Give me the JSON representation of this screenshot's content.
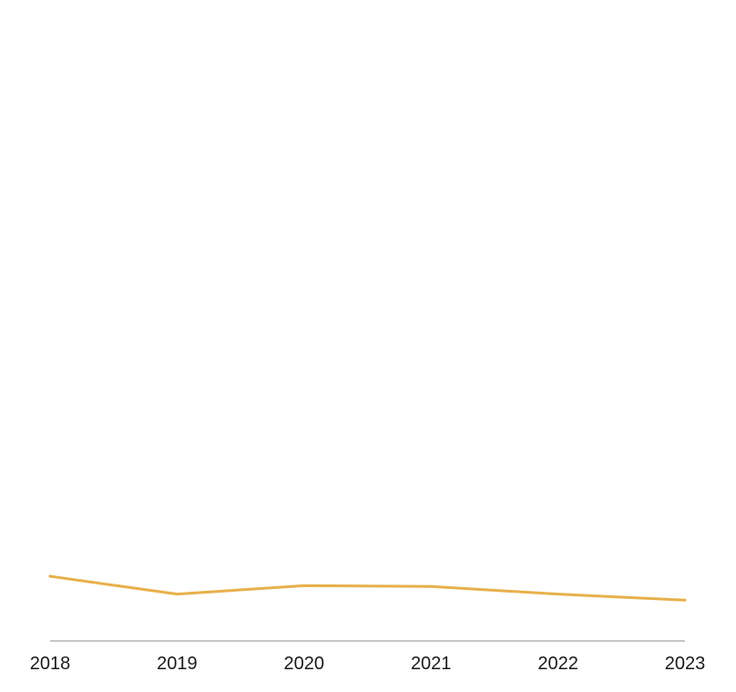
{
  "chart_data": {
    "type": "line",
    "title": "",
    "xlabel": "",
    "ylabel": "",
    "categories": [
      "2018",
      "2019",
      "2020",
      "2021",
      "2022",
      "2023"
    ],
    "series": [
      {
        "values": [
          76,
          55,
          65,
          64,
          55,
          48
        ]
      }
    ],
    "ylim": [
      0,
      750
    ],
    "grid": false,
    "legend": "none",
    "colors": {
      "line": "#E8B04B",
      "axis": "#8c8c8c",
      "text": "#1a1a1a"
    }
  }
}
